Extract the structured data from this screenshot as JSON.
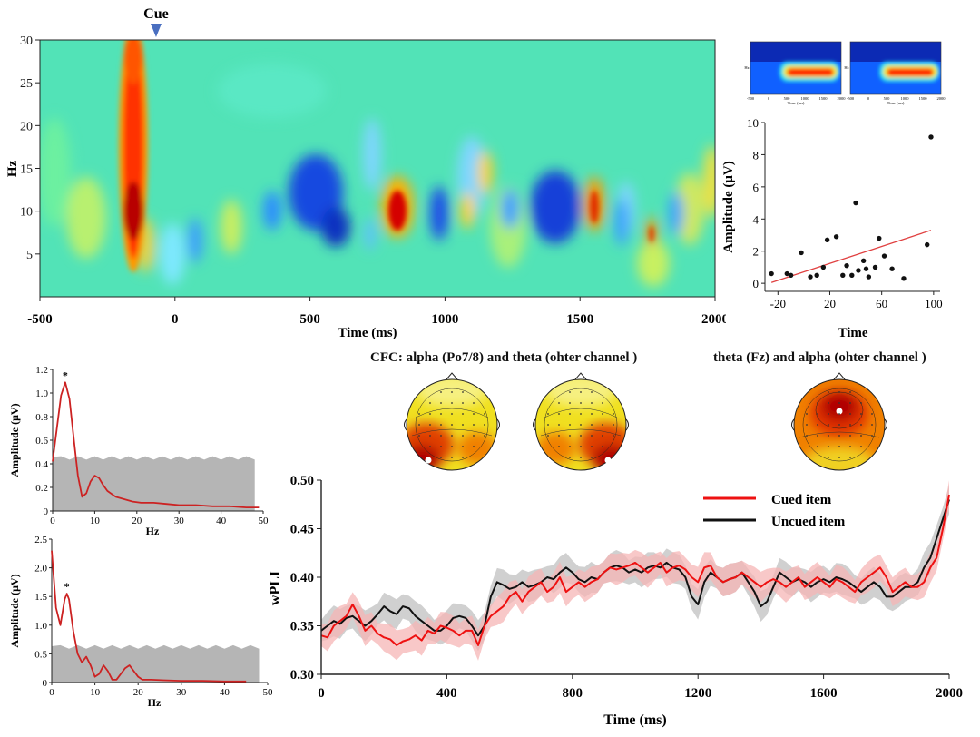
{
  "spectrogram": {
    "cue_label": "Cue",
    "ylabel": "Hz",
    "xlabel": "Time (ms)",
    "x_ticks": [
      "-500",
      "0",
      "500",
      "1000",
      "1500",
      "2000"
    ],
    "y_ticks": [
      "5",
      "10",
      "15",
      "20",
      "25",
      "30"
    ],
    "xlim": [
      -500,
      2000
    ],
    "ylim": [
      0,
      30
    ],
    "cue_time": -70
  },
  "thumbnails": {
    "axis_text": [
      "-500",
      "0",
      "500",
      "1000",
      "1500",
      "2000"
    ],
    "xlabel": "Time (ms)",
    "ylabel": "Hz"
  },
  "cfc_title": "CFC: alpha (Po7/8) and theta (ohter channel )",
  "theta_title": "theta (Fz) and alpha (ohter channel )",
  "colors": {
    "cued": "#ee1111",
    "uncued": "#111111",
    "cued_band": "#f6b5b5",
    "uncued_band": "#c8c8c8",
    "surrogate": "#b5b5b5",
    "spectrum": "#cc2222",
    "trend": "#e04040"
  },
  "chart_data": [
    {
      "type": "scatter",
      "title": "",
      "xlabel": "Time",
      "ylabel": "Amplitude (μV)",
      "xlim": [
        -30,
        105
      ],
      "ylim": [
        -0.5,
        10
      ],
      "x_ticks": [
        "-20",
        "20",
        "60",
        "100"
      ],
      "y_ticks": [
        "0",
        "2",
        "4",
        "6",
        "8",
        "10"
      ],
      "x": [
        -25,
        -13,
        -10,
        -2,
        5,
        10,
        15,
        18,
        25,
        30,
        33,
        37,
        40,
        42,
        46,
        48,
        50,
        55,
        58,
        62,
        68,
        77,
        95,
        98
      ],
      "y": [
        0.6,
        0.6,
        0.5,
        1.9,
        0.4,
        0.5,
        1.0,
        2.7,
        2.9,
        0.5,
        1.1,
        0.5,
        5.0,
        0.8,
        1.4,
        0.9,
        0.4,
        1.0,
        2.8,
        1.7,
        0.9,
        0.3,
        2.4,
        9.1
      ],
      "trend": [
        [
          -25,
          0.05
        ],
        [
          98,
          3.3
        ]
      ]
    },
    {
      "type": "line",
      "xlabel": "Hz",
      "ylabel": "Amplitude (μV)",
      "xlim": [
        0,
        50
      ],
      "ylim": [
        0,
        1.2
      ],
      "x_ticks": [
        "0",
        "10",
        "20",
        "30",
        "40",
        "50"
      ],
      "y_ticks": [
        "0",
        "0.2",
        "0.4",
        "0.6",
        "0.8",
        "1.0",
        "1.2"
      ],
      "annotation": "*",
      "peak": [
        3,
        1.09
      ],
      "x": [
        0,
        1,
        2,
        3,
        4,
        5,
        6,
        7,
        8,
        9,
        10,
        11,
        12,
        13,
        15,
        17,
        19,
        21,
        24,
        27,
        30,
        34,
        38,
        42,
        46,
        49
      ],
      "y": [
        0.42,
        0.7,
        0.98,
        1.09,
        0.95,
        0.62,
        0.3,
        0.12,
        0.15,
        0.25,
        0.3,
        0.28,
        0.22,
        0.17,
        0.12,
        0.1,
        0.08,
        0.07,
        0.07,
        0.06,
        0.05,
        0.05,
        0.04,
        0.04,
        0.03,
        0.03
      ],
      "surrogate_level": 0.45
    },
    {
      "type": "line",
      "xlabel": "Hz",
      "ylabel": "Amplitude (μV)",
      "xlim": [
        0,
        50
      ],
      "ylim": [
        0,
        2.5
      ],
      "x_ticks": [
        "0",
        "10",
        "20",
        "30",
        "40",
        "50"
      ],
      "y_ticks": [
        "0",
        "0.5",
        "1.0",
        "1.5",
        "2.0",
        "2.5"
      ],
      "annotation": "*",
      "peak": [
        3.5,
        1.55
      ],
      "x": [
        0,
        0.5,
        1,
        2,
        3,
        3.5,
        4,
        5,
        6,
        7,
        8,
        9,
        10,
        11,
        12,
        13,
        14,
        15,
        16,
        17,
        18,
        19,
        20,
        21,
        23,
        26,
        30,
        35,
        40,
        45
      ],
      "y": [
        2.3,
        1.8,
        1.3,
        1.0,
        1.45,
        1.55,
        1.45,
        0.9,
        0.5,
        0.35,
        0.45,
        0.3,
        0.1,
        0.15,
        0.3,
        0.2,
        0.05,
        0.05,
        0.15,
        0.25,
        0.3,
        0.2,
        0.1,
        0.05,
        0.05,
        0.04,
        0.03,
        0.03,
        0.02,
        0.02
      ],
      "surrogate_level": 0.62
    },
    {
      "type": "line",
      "title": "",
      "xlabel": "Time (ms)",
      "ylabel": "wPLI",
      "xlim": [
        0,
        2000
      ],
      "ylim": [
        0.3,
        0.5
      ],
      "x_ticks": [
        "0",
        "400",
        "800",
        "1200",
        "1600",
        "2000"
      ],
      "y_ticks": [
        "0.30",
        "0.35",
        "0.40",
        "0.45",
        "0.50"
      ],
      "legend_position": "top-right",
      "series": [
        {
          "name": "Cued item",
          "x": [
            0,
            20,
            40,
            60,
            80,
            100,
            120,
            140,
            160,
            180,
            200,
            220,
            240,
            260,
            280,
            300,
            320,
            340,
            360,
            380,
            400,
            420,
            440,
            460,
            480,
            500,
            520,
            540,
            560,
            580,
            600,
            620,
            640,
            660,
            680,
            700,
            720,
            740,
            760,
            780,
            800,
            820,
            840,
            860,
            880,
            900,
            920,
            940,
            960,
            980,
            1000,
            1020,
            1040,
            1060,
            1080,
            1100,
            1120,
            1140,
            1160,
            1180,
            1200,
            1220,
            1240,
            1260,
            1280,
            1300,
            1320,
            1340,
            1360,
            1380,
            1400,
            1420,
            1440,
            1460,
            1480,
            1500,
            1520,
            1540,
            1560,
            1580,
            1600,
            1620,
            1640,
            1660,
            1680,
            1700,
            1720,
            1740,
            1760,
            1780,
            1800,
            1820,
            1840,
            1860,
            1880,
            1900,
            1920,
            1940,
            1960,
            1980,
            2000
          ],
          "y": [
            0.34,
            0.338,
            0.35,
            0.355,
            0.36,
            0.372,
            0.36,
            0.345,
            0.35,
            0.342,
            0.338,
            0.336,
            0.33,
            0.334,
            0.336,
            0.34,
            0.335,
            0.345,
            0.342,
            0.35,
            0.348,
            0.345,
            0.34,
            0.345,
            0.345,
            0.33,
            0.35,
            0.36,
            0.365,
            0.37,
            0.38,
            0.385,
            0.375,
            0.385,
            0.39,
            0.395,
            0.385,
            0.39,
            0.4,
            0.385,
            0.39,
            0.395,
            0.39,
            0.395,
            0.398,
            0.405,
            0.41,
            0.408,
            0.41,
            0.412,
            0.415,
            0.41,
            0.405,
            0.41,
            0.415,
            0.405,
            0.41,
            0.412,
            0.408,
            0.4,
            0.395,
            0.41,
            0.412,
            0.4,
            0.395,
            0.398,
            0.4,
            0.405,
            0.4,
            0.395,
            0.39,
            0.395,
            0.398,
            0.395,
            0.39,
            0.395,
            0.4,
            0.39,
            0.395,
            0.4,
            0.395,
            0.39,
            0.398,
            0.395,
            0.39,
            0.385,
            0.395,
            0.4,
            0.405,
            0.41,
            0.4,
            0.385,
            0.39,
            0.395,
            0.39,
            0.39,
            0.395,
            0.41,
            0.42,
            0.45,
            0.485
          ]
        },
        {
          "name": "Uncued item",
          "x": [
            0,
            20,
            40,
            60,
            80,
            100,
            120,
            140,
            160,
            180,
            200,
            220,
            240,
            260,
            280,
            300,
            320,
            340,
            360,
            380,
            400,
            420,
            440,
            460,
            480,
            500,
            520,
            540,
            560,
            580,
            600,
            620,
            640,
            660,
            680,
            700,
            720,
            740,
            760,
            780,
            800,
            820,
            840,
            860,
            880,
            900,
            920,
            940,
            960,
            980,
            1000,
            1020,
            1040,
            1060,
            1080,
            1100,
            1120,
            1140,
            1160,
            1180,
            1200,
            1220,
            1240,
            1260,
            1280,
            1300,
            1320,
            1340,
            1360,
            1380,
            1400,
            1420,
            1440,
            1460,
            1480,
            1500,
            1520,
            1540,
            1560,
            1580,
            1600,
            1620,
            1640,
            1660,
            1680,
            1700,
            1720,
            1740,
            1760,
            1780,
            1800,
            1820,
            1840,
            1860,
            1880,
            1900,
            1920,
            1940,
            1960,
            1980,
            2000
          ],
          "y": [
            0.345,
            0.35,
            0.355,
            0.352,
            0.358,
            0.36,
            0.355,
            0.35,
            0.355,
            0.362,
            0.37,
            0.365,
            0.362,
            0.37,
            0.368,
            0.36,
            0.355,
            0.35,
            0.345,
            0.345,
            0.35,
            0.358,
            0.36,
            0.358,
            0.35,
            0.34,
            0.35,
            0.38,
            0.395,
            0.392,
            0.388,
            0.39,
            0.395,
            0.39,
            0.392,
            0.395,
            0.4,
            0.398,
            0.405,
            0.41,
            0.405,
            0.398,
            0.395,
            0.4,
            0.398,
            0.405,
            0.41,
            0.412,
            0.41,
            0.405,
            0.408,
            0.405,
            0.41,
            0.412,
            0.41,
            0.415,
            0.41,
            0.408,
            0.4,
            0.38,
            0.372,
            0.395,
            0.405,
            0.4,
            0.395,
            0.398,
            0.4,
            0.405,
            0.395,
            0.385,
            0.37,
            0.375,
            0.39,
            0.405,
            0.4,
            0.395,
            0.398,
            0.395,
            0.39,
            0.395,
            0.398,
            0.395,
            0.4,
            0.398,
            0.395,
            0.39,
            0.385,
            0.39,
            0.395,
            0.39,
            0.38,
            0.38,
            0.385,
            0.39,
            0.39,
            0.395,
            0.41,
            0.42,
            0.44,
            0.46,
            0.48
          ]
        }
      ]
    }
  ]
}
